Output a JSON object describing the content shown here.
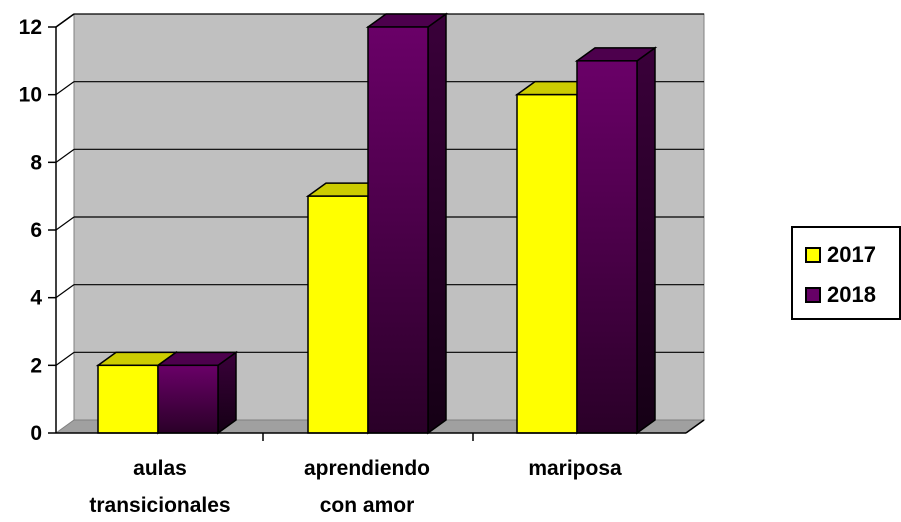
{
  "chart_data": {
    "type": "bar",
    "title": "",
    "xlabel": "",
    "ylabel": "",
    "categories": [
      "aulas transicionales",
      "aprendiendo con amor",
      "mariposa"
    ],
    "category_lines": [
      [
        "aulas",
        "transicionales"
      ],
      [
        "aprendiendo",
        "con amor"
      ],
      [
        "mariposa"
      ]
    ],
    "series": [
      {
        "name": "2017",
        "values": [
          2,
          7,
          10
        ],
        "color": "#ffff00",
        "top_color": "#cccc00",
        "side_color": "#999900"
      },
      {
        "name": "2018",
        "values": [
          2,
          12,
          11
        ],
        "color": "#660066",
        "top_color": "#4d004d",
        "side_color": "#330033"
      }
    ],
    "ylim": [
      0,
      12
    ],
    "yticks": [
      "0",
      "2",
      "4",
      "6",
      "8",
      "10",
      "12"
    ],
    "grid": true,
    "legend_position": "right",
    "style": "3d-clustered-column",
    "wall_color": "#c0c0c0"
  },
  "legend": {
    "items": [
      {
        "label": "2017",
        "color": "#ffff00"
      },
      {
        "label": "2018",
        "color": "#660066"
      }
    ]
  }
}
